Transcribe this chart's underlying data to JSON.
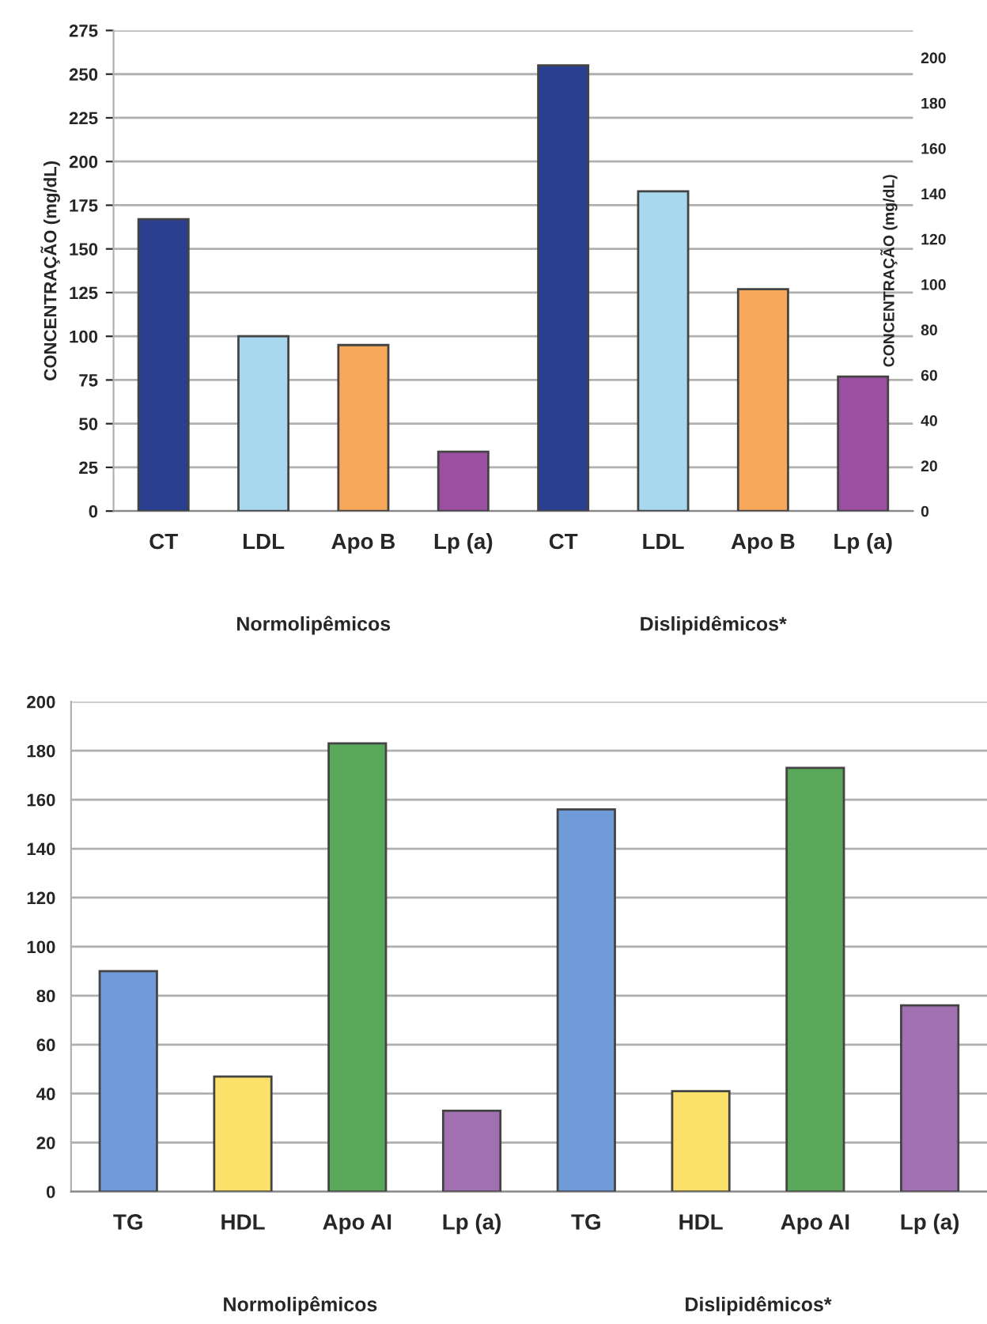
{
  "chart_data": [
    {
      "type": "bar",
      "ylabel": "CONCENTRAÇÃO (mg/dL)",
      "y2label": "CONCENTRAÇÃO (mg/dL)",
      "categories": [
        "CT",
        "LDL",
        "Apo B",
        "Lp (a)",
        "CT",
        "LDL",
        "Apo B",
        "Lp (a)"
      ],
      "values": [
        167,
        100,
        95,
        34,
        255,
        183,
        127,
        77
      ],
      "colors": [
        "#2a3f8f",
        "#a8d8ee",
        "#f7a85a",
        "#9b4fa0",
        "#2a3f8f",
        "#a8d8ee",
        "#f7a85a",
        "#9b4fa0"
      ],
      "ylim": [
        0,
        275
      ],
      "yticks": [
        0,
        25,
        50,
        75,
        100,
        125,
        150,
        175,
        200,
        225,
        250,
        275
      ],
      "y2lim": [
        0,
        212
      ],
      "y2ticks": [
        0,
        20,
        40,
        60,
        80,
        100,
        120,
        140,
        160,
        180,
        200
      ],
      "grid": "y",
      "annotations": [
        "Normolipêmicos",
        "Dislipidêmicos*"
      ]
    },
    {
      "type": "bar",
      "categories": [
        "TG",
        "HDL",
        "Apo AI",
        "Lp (a)",
        "TG",
        "HDL",
        "Apo AI",
        "Lp (a)"
      ],
      "values": [
        90,
        47,
        183,
        33,
        156,
        41,
        173,
        76
      ],
      "colors": [
        "#6f9bd8",
        "#fbe06a",
        "#5aa85a",
        "#a070b0",
        "#6f9bd8",
        "#fbe06a",
        "#5aa85a",
        "#a070b0"
      ],
      "ylim": [
        0,
        200
      ],
      "yticks": [
        0,
        20,
        40,
        60,
        80,
        100,
        120,
        140,
        160,
        180,
        200
      ],
      "grid": "y",
      "annotations": [
        "Normolipêmicos",
        "Dislipidêmicos*"
      ]
    }
  ]
}
